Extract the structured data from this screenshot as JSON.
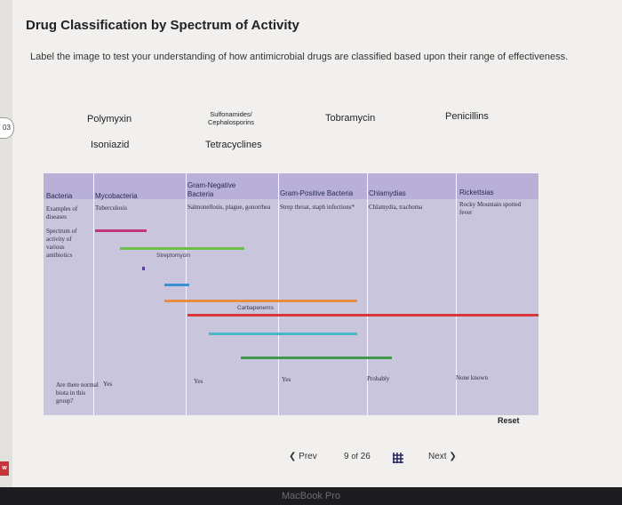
{
  "page": {
    "title": "Drug Classification by Spectrum of Activity",
    "instructions": "Label the image to test your understanding of how antimicrobial drugs are classified based upon their range of effectiveness.",
    "left_tab": "03",
    "side_badge": "w"
  },
  "drag_labels": [
    "Polymyxin",
    "Sulfonamides/ Cephalosporins",
    "Tobramycin",
    "Penicillins",
    "Isoniazid",
    "Tetracyclines"
  ],
  "diagram": {
    "row_labels": {
      "bacteria": "Bacteria",
      "examples": "Examples of diseases",
      "spectrum": "Spectrum of activity of various antibiotics",
      "flora": "Are there normal biota in this group?"
    },
    "columns": [
      {
        "header": "Mycobacteria",
        "example": "Tuberculosis",
        "flora": "Yes"
      },
      {
        "header": "Gram-Negative Bacteria",
        "example": "Salmonellosis, plague, gonorrhea",
        "flora": "Yes"
      },
      {
        "header": "Gram-Positive Bacteria",
        "example": "Strep throat, staph infections*",
        "flora": "Yes"
      },
      {
        "header": "Chlamydias",
        "example": "Chlamydia, trachoma",
        "flora": "Probably"
      },
      {
        "header": "Rickettsias",
        "example": "Rocky Mountain spotted fever",
        "flora": "None known"
      }
    ],
    "bar_labels": {
      "streptomycin": "Streptomycin",
      "carbapenems": "Carbapenems"
    },
    "colors": {
      "magenta": "#c2367a",
      "green": "#6cc04a",
      "purple": "#5b3f9a",
      "blue": "#3a8fd8",
      "orange": "#e88d3f",
      "red": "#d8373a",
      "teal": "#48b8c8",
      "darkgreen": "#3f9a4a"
    }
  },
  "footer": {
    "reset": "Reset",
    "prev": "Prev",
    "page_current": "9",
    "page_of": "of",
    "page_total": "26",
    "next": "Next"
  },
  "bezel": {
    "brand": "MacBook Pro"
  }
}
